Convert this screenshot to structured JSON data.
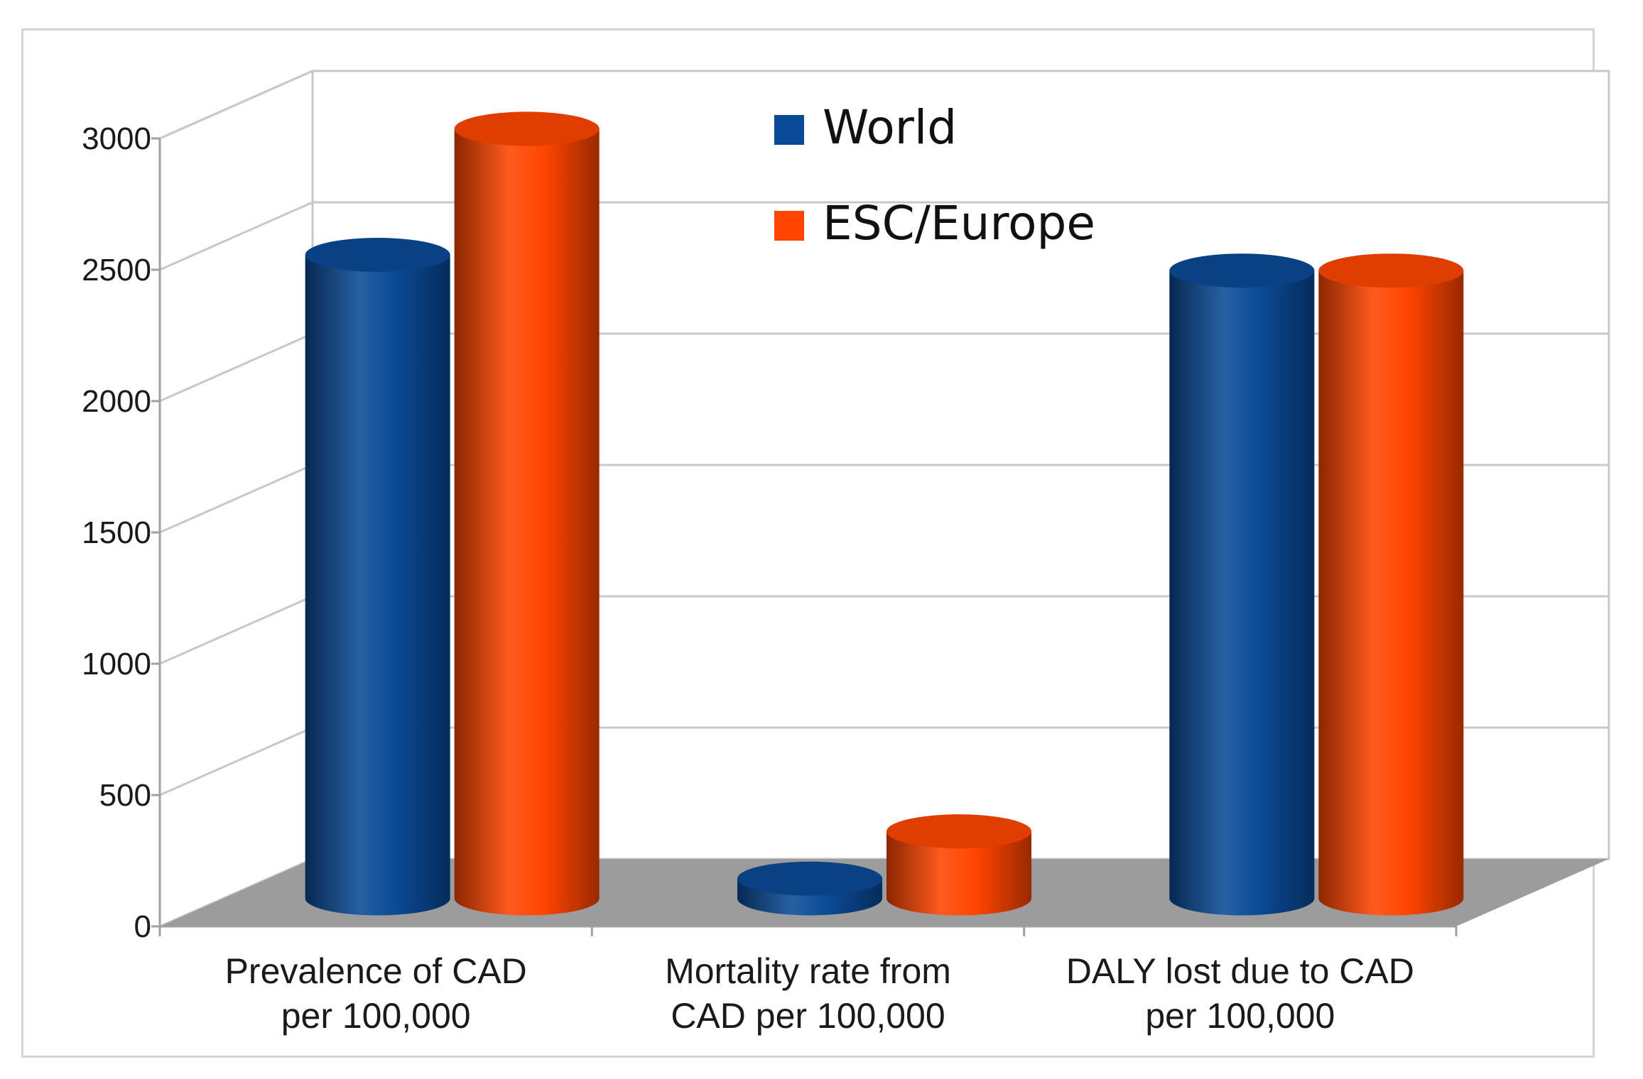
{
  "chart_data": {
    "type": "bar",
    "style": "3d-cylinder",
    "title": "",
    "xlabel": "",
    "ylabel": "",
    "ylim": [
      0,
      3000
    ],
    "ytick_values": [
      0,
      500,
      1000,
      1500,
      2000,
      2500,
      3000
    ],
    "ytick_labels": [
      "0",
      "500",
      "1000",
      "1500",
      "2000",
      "2500",
      "3000"
    ],
    "grid": true,
    "legend_position": "top-center",
    "categories": [
      [
        "Prevalence of CAD",
        "per 100,000"
      ],
      [
        "Mortality rate from",
        "CAD per 100,000"
      ],
      [
        "DALY lost due to CAD",
        "per 100,000"
      ]
    ],
    "series": [
      {
        "name": "World",
        "color": "#0a4a96",
        "values": [
          2450,
          75,
          2390
        ]
      },
      {
        "name": "ESC/Europe",
        "color": "#ff4500",
        "values": [
          2930,
          255,
          2390
        ]
      }
    ]
  }
}
